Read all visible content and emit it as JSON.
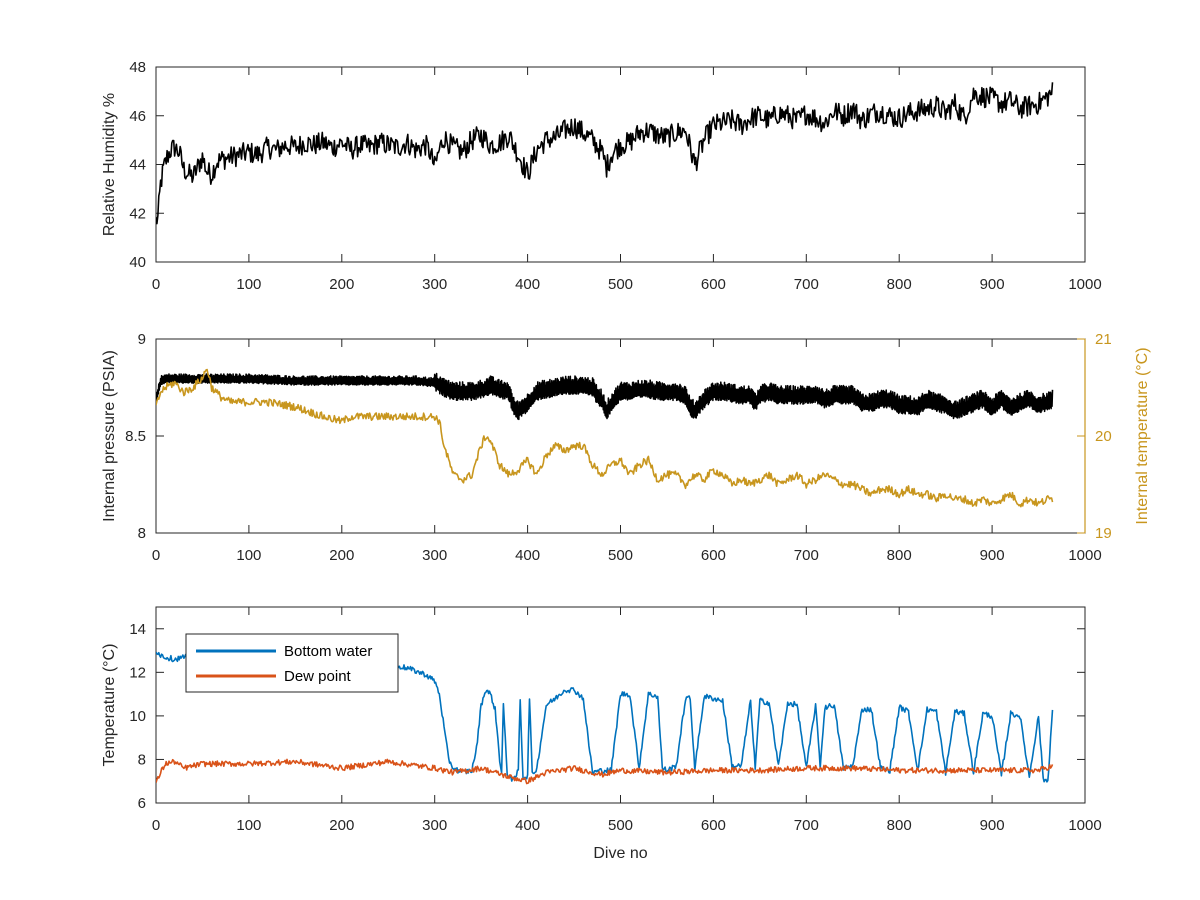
{
  "chart_data": [
    {
      "type": "line",
      "xlabel": "",
      "ylabel": "Relative Humidity %",
      "xlim": [
        0,
        1000
      ],
      "ylim": [
        40,
        48
      ],
      "xticks": [
        "0",
        "100",
        "200",
        "300",
        "400",
        "500",
        "600",
        "700",
        "800",
        "900",
        "1000"
      ],
      "yticks": [
        "40",
        "42",
        "44",
        "46",
        "48"
      ],
      "grid": false,
      "series": [
        {
          "color": "#000000",
          "x": [
            0,
            2,
            5,
            8,
            12,
            16,
            20,
            25,
            30,
            35,
            40,
            45,
            50,
            55,
            60,
            65,
            70,
            80,
            90,
            100,
            110,
            120,
            130,
            140,
            150,
            160,
            170,
            180,
            190,
            200,
            210,
            220,
            230,
            240,
            250,
            260,
            270,
            280,
            290,
            295,
            300,
            305,
            310,
            320,
            330,
            340,
            350,
            360,
            370,
            380,
            390,
            400,
            410,
            420,
            430,
            440,
            450,
            460,
            470,
            480,
            485,
            490,
            500,
            510,
            520,
            530,
            540,
            550,
            560,
            570,
            575,
            580,
            590,
            600,
            610,
            620,
            630,
            640,
            650,
            660,
            670,
            680,
            690,
            700,
            710,
            720,
            730,
            740,
            750,
            760,
            770,
            780,
            790,
            800,
            810,
            820,
            830,
            840,
            850,
            860,
            870,
            880,
            890,
            900,
            910,
            920,
            930,
            940,
            950,
            960,
            965
          ],
          "y": [
            41.7,
            41.8,
            43.2,
            43.8,
            44.3,
            44.6,
            44.7,
            44.5,
            43.8,
            43.6,
            43.5,
            43.9,
            44.3,
            43.7,
            43.6,
            44.1,
            44.2,
            44.3,
            44.4,
            44.5,
            44.4,
            44.7,
            44.6,
            44.8,
            44.7,
            44.9,
            44.8,
            44.9,
            44.7,
            44.9,
            44.6,
            44.8,
            44.7,
            44.9,
            44.8,
            44.7,
            44.9,
            44.6,
            44.8,
            44.5,
            43.9,
            44.6,
            45.1,
            44.7,
            44.5,
            45.0,
            45.2,
            44.8,
            44.9,
            45.2,
            44.4,
            43.6,
            44.6,
            45.0,
            45.1,
            45.4,
            45.6,
            45.3,
            45.0,
            44.5,
            43.9,
            44.4,
            44.8,
            44.9,
            45.3,
            45.4,
            45.2,
            45.1,
            45.3,
            45.4,
            44.7,
            44.0,
            45.0,
            45.6,
            45.7,
            45.8,
            45.6,
            45.9,
            46.0,
            45.8,
            46.1,
            46.0,
            45.8,
            46.1,
            45.9,
            45.7,
            46.2,
            46.0,
            46.3,
            45.8,
            46.1,
            46.2,
            46.0,
            45.9,
            46.1,
            46.2,
            46.3,
            46.4,
            46.1,
            46.5,
            45.9,
            46.9,
            46.8,
            46.7,
            46.5,
            46.6,
            46.3,
            46.4,
            46.5,
            46.8,
            47.0
          ]
        }
      ]
    },
    {
      "type": "line",
      "xlabel": "",
      "ylabel": "Internal pressure (PSIA)",
      "y2label": "Internal temperature (°C)",
      "xlim": [
        0,
        1000
      ],
      "ylim": [
        8,
        9
      ],
      "y2lim": [
        19,
        21
      ],
      "xticks": [
        "0",
        "100",
        "200",
        "300",
        "400",
        "500",
        "600",
        "700",
        "800",
        "900",
        "1000"
      ],
      "yticks": [
        "8",
        "8.5",
        "9"
      ],
      "y2ticks": [
        "19",
        "20",
        "21"
      ],
      "y2color": "#c8961e",
      "grid": false,
      "series": [
        {
          "axis": "left",
          "color": "#000000",
          "pattern": "dense",
          "x": [
            0,
            5,
            10,
            50,
            100,
            150,
            200,
            250,
            280,
            300,
            310,
            320,
            330,
            340,
            350,
            360,
            370,
            380,
            385,
            390,
            400,
            410,
            420,
            430,
            440,
            450,
            460,
            470,
            475,
            480,
            485,
            490,
            500,
            510,
            520,
            530,
            540,
            550,
            560,
            570,
            575,
            580,
            590,
            600,
            610,
            620,
            630,
            640,
            645,
            650,
            660,
            670,
            680,
            690,
            700,
            710,
            720,
            730,
            740,
            750,
            760,
            770,
            780,
            790,
            800,
            810,
            820,
            830,
            840,
            850,
            860,
            870,
            880,
            890,
            900,
            910,
            920,
            930,
            940,
            950,
            960,
            965
          ],
          "y": [
            8.68,
            8.78,
            8.79,
            8.79,
            8.79,
            8.78,
            8.78,
            8.78,
            8.78,
            8.77,
            8.74,
            8.72,
            8.72,
            8.72,
            8.73,
            8.75,
            8.73,
            8.72,
            8.64,
            8.62,
            8.66,
            8.72,
            8.73,
            8.74,
            8.75,
            8.75,
            8.75,
            8.74,
            8.7,
            8.68,
            8.62,
            8.66,
            8.72,
            8.72,
            8.73,
            8.73,
            8.72,
            8.72,
            8.72,
            8.7,
            8.64,
            8.62,
            8.68,
            8.72,
            8.72,
            8.71,
            8.7,
            8.7,
            8.66,
            8.7,
            8.72,
            8.7,
            8.7,
            8.7,
            8.7,
            8.71,
            8.68,
            8.7,
            8.7,
            8.7,
            8.66,
            8.66,
            8.68,
            8.68,
            8.65,
            8.65,
            8.64,
            8.68,
            8.66,
            8.65,
            8.62,
            8.64,
            8.66,
            8.68,
            8.64,
            8.68,
            8.64,
            8.66,
            8.68,
            8.65,
            8.67,
            8.68
          ]
        },
        {
          "axis": "right",
          "color": "#c8961e",
          "x": [
            0,
            5,
            10,
            20,
            30,
            40,
            50,
            55,
            60,
            70,
            80,
            100,
            120,
            150,
            180,
            200,
            210,
            220,
            240,
            260,
            280,
            290,
            300,
            305,
            310,
            320,
            330,
            340,
            350,
            355,
            360,
            370,
            380,
            390,
            400,
            410,
            420,
            430,
            440,
            450,
            460,
            470,
            480,
            490,
            500,
            510,
            520,
            530,
            540,
            550,
            560,
            570,
            580,
            590,
            600,
            610,
            620,
            630,
            640,
            650,
            660,
            670,
            680,
            690,
            700,
            710,
            720,
            730,
            740,
            750,
            760,
            770,
            780,
            790,
            800,
            810,
            820,
            830,
            840,
            850,
            860,
            870,
            880,
            890,
            900,
            910,
            920,
            930,
            940,
            950,
            960,
            965
          ],
          "y": [
            20.3,
            20.45,
            20.5,
            20.55,
            20.45,
            20.5,
            20.6,
            20.7,
            20.5,
            20.4,
            20.35,
            20.35,
            20.35,
            20.3,
            20.2,
            20.15,
            20.2,
            20.2,
            20.2,
            20.2,
            20.2,
            20.2,
            20.2,
            20.15,
            19.9,
            19.6,
            19.55,
            19.6,
            19.9,
            20.0,
            19.95,
            19.7,
            19.6,
            19.65,
            19.75,
            19.6,
            19.8,
            19.9,
            19.85,
            19.9,
            19.9,
            19.7,
            19.6,
            19.7,
            19.75,
            19.6,
            19.7,
            19.75,
            19.55,
            19.6,
            19.6,
            19.5,
            19.6,
            19.55,
            19.65,
            19.6,
            19.5,
            19.55,
            19.5,
            19.55,
            19.6,
            19.5,
            19.55,
            19.6,
            19.5,
            19.55,
            19.6,
            19.55,
            19.5,
            19.5,
            19.45,
            19.4,
            19.45,
            19.45,
            19.4,
            19.45,
            19.4,
            19.4,
            19.35,
            19.4,
            19.35,
            19.35,
            19.3,
            19.35,
            19.3,
            19.35,
            19.4,
            19.3,
            19.35,
            19.3,
            19.35,
            19.35
          ]
        }
      ]
    },
    {
      "type": "line",
      "xlabel": "Dive no",
      "ylabel": "Temperature (°C)",
      "xlim": [
        0,
        1000
      ],
      "ylim": [
        6,
        15
      ],
      "xticks": [
        "0",
        "100",
        "200",
        "300",
        "400",
        "500",
        "600",
        "700",
        "800",
        "900",
        "1000"
      ],
      "yticks": [
        "6",
        "8",
        "10",
        "12",
        "14"
      ],
      "grid": false,
      "legend": "top-left",
      "series": [
        {
          "name": "Bottom water",
          "color": "#0072bd",
          "x": [
            0,
            5,
            10,
            20,
            30,
            50,
            100,
            150,
            200,
            250,
            270,
            290,
            300,
            305,
            310,
            315,
            320,
            330,
            340,
            345,
            350,
            355,
            360,
            365,
            370,
            372,
            374,
            378,
            380,
            385,
            390,
            392,
            395,
            400,
            402,
            405,
            410,
            420,
            430,
            440,
            450,
            460,
            465,
            470,
            480,
            490,
            500,
            510,
            520,
            530,
            540,
            545,
            550,
            560,
            570,
            575,
            580,
            590,
            600,
            610,
            620,
            630,
            640,
            645,
            650,
            660,
            670,
            680,
            690,
            700,
            710,
            715,
            720,
            730,
            740,
            750,
            760,
            770,
            780,
            790,
            800,
            810,
            820,
            830,
            840,
            850,
            860,
            870,
            880,
            890,
            900,
            910,
            920,
            930,
            940,
            950,
            955,
            960,
            965
          ],
          "y": [
            13.0,
            12.8,
            12.7,
            12.6,
            12.7,
            12.7,
            12.6,
            12.6,
            12.5,
            12.4,
            12.2,
            11.9,
            11.6,
            11.0,
            9.5,
            8.0,
            7.6,
            7.4,
            7.5,
            8.5,
            10.5,
            11.2,
            11.0,
            10.3,
            8.0,
            7.4,
            10.5,
            7.3,
            7.3,
            7.0,
            7.5,
            10.8,
            7.2,
            7.2,
            10.9,
            7.3,
            7.6,
            10.5,
            10.8,
            11.2,
            11.2,
            10.8,
            9.0,
            7.4,
            7.5,
            7.5,
            11.0,
            11.0,
            7.6,
            11.0,
            10.9,
            7.6,
            7.5,
            7.7,
            10.8,
            10.8,
            7.6,
            10.9,
            10.8,
            10.7,
            7.7,
            7.7,
            10.7,
            7.6,
            10.7,
            10.6,
            7.7,
            10.6,
            10.5,
            7.6,
            10.5,
            7.7,
            10.4,
            10.5,
            7.6,
            7.7,
            10.3,
            10.3,
            7.6,
            7.5,
            10.4,
            10.2,
            7.5,
            10.3,
            10.2,
            7.4,
            10.2,
            10.1,
            7.4,
            10.1,
            10.0,
            7.3,
            10.1,
            10.0,
            7.2,
            10.0,
            7.1,
            7.0,
            10.3
          ]
        },
        {
          "name": "Dew point",
          "color": "#d95319",
          "x": [
            0,
            5,
            10,
            20,
            30,
            50,
            100,
            150,
            200,
            250,
            300,
            320,
            350,
            380,
            400,
            420,
            450,
            480,
            500,
            550,
            600,
            650,
            700,
            750,
            800,
            850,
            900,
            950,
            965
          ],
          "y": [
            6.9,
            7.4,
            7.8,
            7.9,
            7.6,
            7.8,
            7.8,
            7.9,
            7.6,
            7.9,
            7.6,
            7.4,
            7.6,
            7.2,
            7.0,
            7.4,
            7.6,
            7.3,
            7.5,
            7.4,
            7.5,
            7.5,
            7.6,
            7.6,
            7.5,
            7.5,
            7.5,
            7.5,
            7.7
          ]
        }
      ]
    }
  ]
}
